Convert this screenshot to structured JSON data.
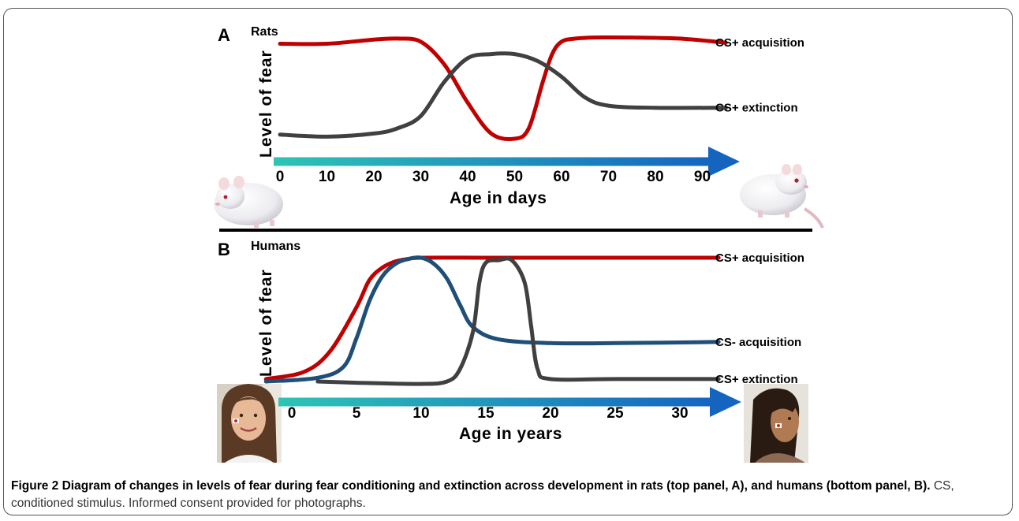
{
  "figure": {
    "caption_label": "Figure 2",
    "caption_bold": "Diagram of changes in levels of fear during fear conditioning and extinction across development in rats (top panel, A), and humans (bottom panel, B).",
    "caption_rest": "CS, conditioned stimulus. Informed consent provided for photographs."
  },
  "colors": {
    "acquisition": "#c00000",
    "extinction": "#404040",
    "cs_minus": "#1f4e79",
    "arrow_start": "#2ec4b6",
    "arrow_end": "#1565c0"
  },
  "chart_data": [
    {
      "type": "line",
      "panel_letter": "A",
      "title": "Rats",
      "ylabel": "Level of fear",
      "xlabel": "Age in days",
      "xlim": [
        0,
        95
      ],
      "ylim": [
        0,
        1
      ],
      "x_ticks": [
        0,
        10,
        20,
        30,
        40,
        50,
        60,
        70,
        80,
        90
      ],
      "photos": [
        "young-rat-photo",
        "adult-rat-photo"
      ],
      "series": [
        {
          "name": "CS+ acquisition",
          "color_key": "acquisition",
          "x": [
            0,
            10,
            20,
            25,
            30,
            35,
            40,
            45,
            50,
            53,
            56,
            58,
            60,
            63,
            67,
            75,
            85,
            95
          ],
          "y": [
            0.92,
            0.92,
            0.96,
            0.97,
            0.94,
            0.72,
            0.35,
            0.05,
            0.0,
            0.1,
            0.55,
            0.82,
            0.94,
            0.97,
            0.98,
            0.98,
            0.97,
            0.93
          ]
        },
        {
          "name": "CS+ extinction",
          "color_key": "extinction",
          "x": [
            0,
            10,
            20,
            25,
            30,
            35,
            40,
            45,
            50,
            55,
            60,
            65,
            70,
            80,
            95
          ],
          "y": [
            0.04,
            0.02,
            0.05,
            0.1,
            0.22,
            0.55,
            0.78,
            0.82,
            0.82,
            0.75,
            0.6,
            0.4,
            0.32,
            0.3,
            0.3
          ]
        }
      ]
    },
    {
      "type": "line",
      "panel_letter": "B",
      "title": "Humans",
      "ylabel": "Level of fear",
      "xlabel": "Age in years",
      "xlim": [
        -2,
        33
      ],
      "ylim": [
        0,
        1
      ],
      "x_ticks": [
        0,
        5,
        10,
        15,
        20,
        25,
        30
      ],
      "photos": [
        "child-photo",
        "teen-photo"
      ],
      "series": [
        {
          "name": "CS+ acquisition",
          "color_key": "acquisition",
          "x": [
            -2,
            1,
            3,
            5,
            6,
            7,
            8,
            9,
            10,
            15,
            20,
            25,
            33
          ],
          "y": [
            0.02,
            0.08,
            0.25,
            0.6,
            0.82,
            0.92,
            0.97,
            0.99,
            1.0,
            1.0,
            1.0,
            1.0,
            1.0
          ]
        },
        {
          "name": "CS- acquisition",
          "color_key": "cs_minus",
          "x": [
            -2,
            2,
            4,
            5,
            6,
            7,
            8,
            9,
            10,
            11,
            12,
            13,
            14,
            16,
            20,
            25,
            33
          ],
          "y": [
            0.0,
            0.03,
            0.12,
            0.35,
            0.65,
            0.85,
            0.95,
            0.99,
            1.0,
            0.95,
            0.83,
            0.62,
            0.44,
            0.34,
            0.31,
            0.31,
            0.32
          ]
        },
        {
          "name": "CS+ extinction",
          "color_key": "extinction",
          "x": [
            2,
            5,
            10,
            12,
            13,
            14,
            14.5,
            15,
            16,
            17,
            18,
            18.5,
            19,
            20,
            25,
            33
          ],
          "y": [
            0.0,
            -0.01,
            -0.02,
            0.0,
            0.1,
            0.4,
            0.8,
            0.96,
            0.98,
            0.98,
            0.8,
            0.45,
            0.1,
            0.02,
            0.02,
            0.02
          ]
        }
      ]
    }
  ]
}
